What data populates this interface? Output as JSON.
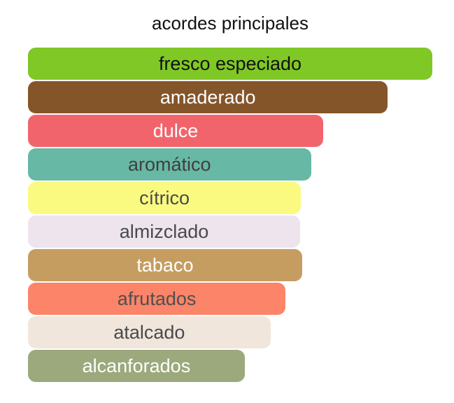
{
  "chart_data": {
    "type": "bar",
    "orientation": "horizontal",
    "title": "acordes principales",
    "legend": false,
    "grid": false,
    "axes_visible": false,
    "categories": [
      "fresco especiado",
      "amaderado",
      "dulce",
      "aromático",
      "cítrico",
      "almizclado",
      "tabaco",
      "afrutados",
      "atalcado",
      "alcanforados"
    ],
    "values": [
      100,
      89,
      73,
      70,
      67.5,
      67.3,
      67.8,
      63.7,
      60,
      53.6
    ],
    "value_unit": "percent-of-max-bar-width",
    "bars": [
      {
        "label": "fresco especiado",
        "width_pct": 100,
        "color": "#7FC826",
        "text_color": "#111111"
      },
      {
        "label": "amaderado",
        "width_pct": 89,
        "color": "#85552A",
        "text_color": "#FFFFFF"
      },
      {
        "label": "dulce",
        "width_pct": 73,
        "color": "#F2646C",
        "text_color": "#FFFFFF"
      },
      {
        "label": "aromático",
        "width_pct": 70,
        "color": "#67B8A5",
        "text_color": "#3F3F3F"
      },
      {
        "label": "cítrico",
        "width_pct": 67.5,
        "color": "#FAFA80",
        "text_color": "#4A4A4A"
      },
      {
        "label": "almizclado",
        "width_pct": 67.3,
        "color": "#EDE4EE",
        "text_color": "#4A4A4A"
      },
      {
        "label": "tabaco",
        "width_pct": 67.8,
        "color": "#C69D60",
        "text_color": "#FFFFFF"
      },
      {
        "label": "afrutados",
        "width_pct": 63.7,
        "color": "#FC8468",
        "text_color": "#4F4F4F"
      },
      {
        "label": "atalcado",
        "width_pct": 60,
        "color": "#F0E6DC",
        "text_color": "#4A4A4A"
      },
      {
        "label": "alcanforados",
        "width_pct": 53.6,
        "color": "#9CA97C",
        "text_color": "#FFFFFF"
      }
    ]
  }
}
